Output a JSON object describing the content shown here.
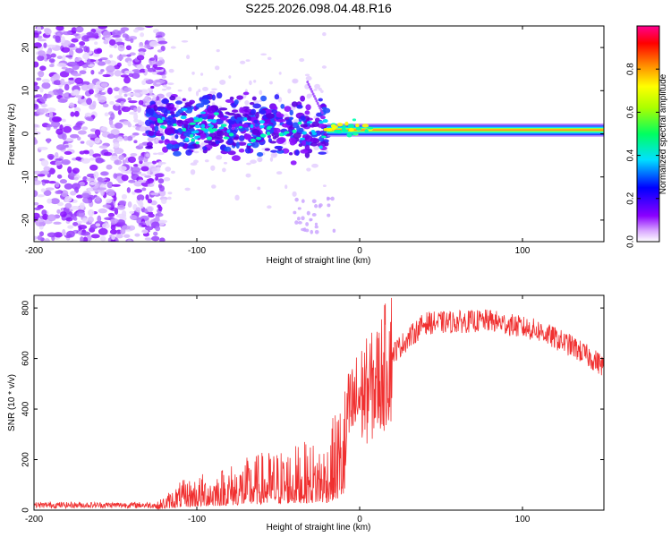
{
  "title": "S225.2026.098.04.48.R16",
  "chart_data": [
    {
      "type": "heatmap",
      "name": "spectrogram",
      "xlabel": "Height of straight line (km)",
      "ylabel": "Frequency (Hz)",
      "xlim": [
        -200,
        150
      ],
      "ylim": [
        -25,
        25
      ],
      "xticks": [
        -200,
        -100,
        0,
        100
      ],
      "yticks": [
        -20,
        -10,
        0,
        10,
        20
      ],
      "colorbar": {
        "label": "Normalized spectral amplitude",
        "range": [
          0,
          1
        ],
        "ticks": [
          "0.0",
          "0.2",
          "0.4",
          "0.6",
          "0.8"
        ]
      },
      "features": {
        "noise_region_x": [
          -200,
          -130
        ],
        "scatter_region_x": [
          -130,
          -20
        ],
        "tone_frequency_hz": 1,
        "tone_start_x": -20
      }
    },
    {
      "type": "line",
      "name": "snr",
      "xlabel": "Height of straight line (km)",
      "ylabel": "SNR (10 * v/v)",
      "xlim": [
        -200,
        150
      ],
      "ylim": [
        0,
        850
      ],
      "xticks": [
        -200,
        -100,
        0,
        100
      ],
      "yticks": [
        0,
        200,
        400,
        600,
        800
      ],
      "color": "#f03030",
      "envelope": {
        "x": [
          -200,
          -125,
          -110,
          -60,
          -20,
          -10,
          0,
          10,
          20,
          40,
          80,
          110,
          130,
          150
        ],
        "y": [
          20,
          20,
          80,
          160,
          200,
          350,
          450,
          500,
          620,
          740,
          750,
          710,
          650,
          570
        ]
      }
    }
  ]
}
